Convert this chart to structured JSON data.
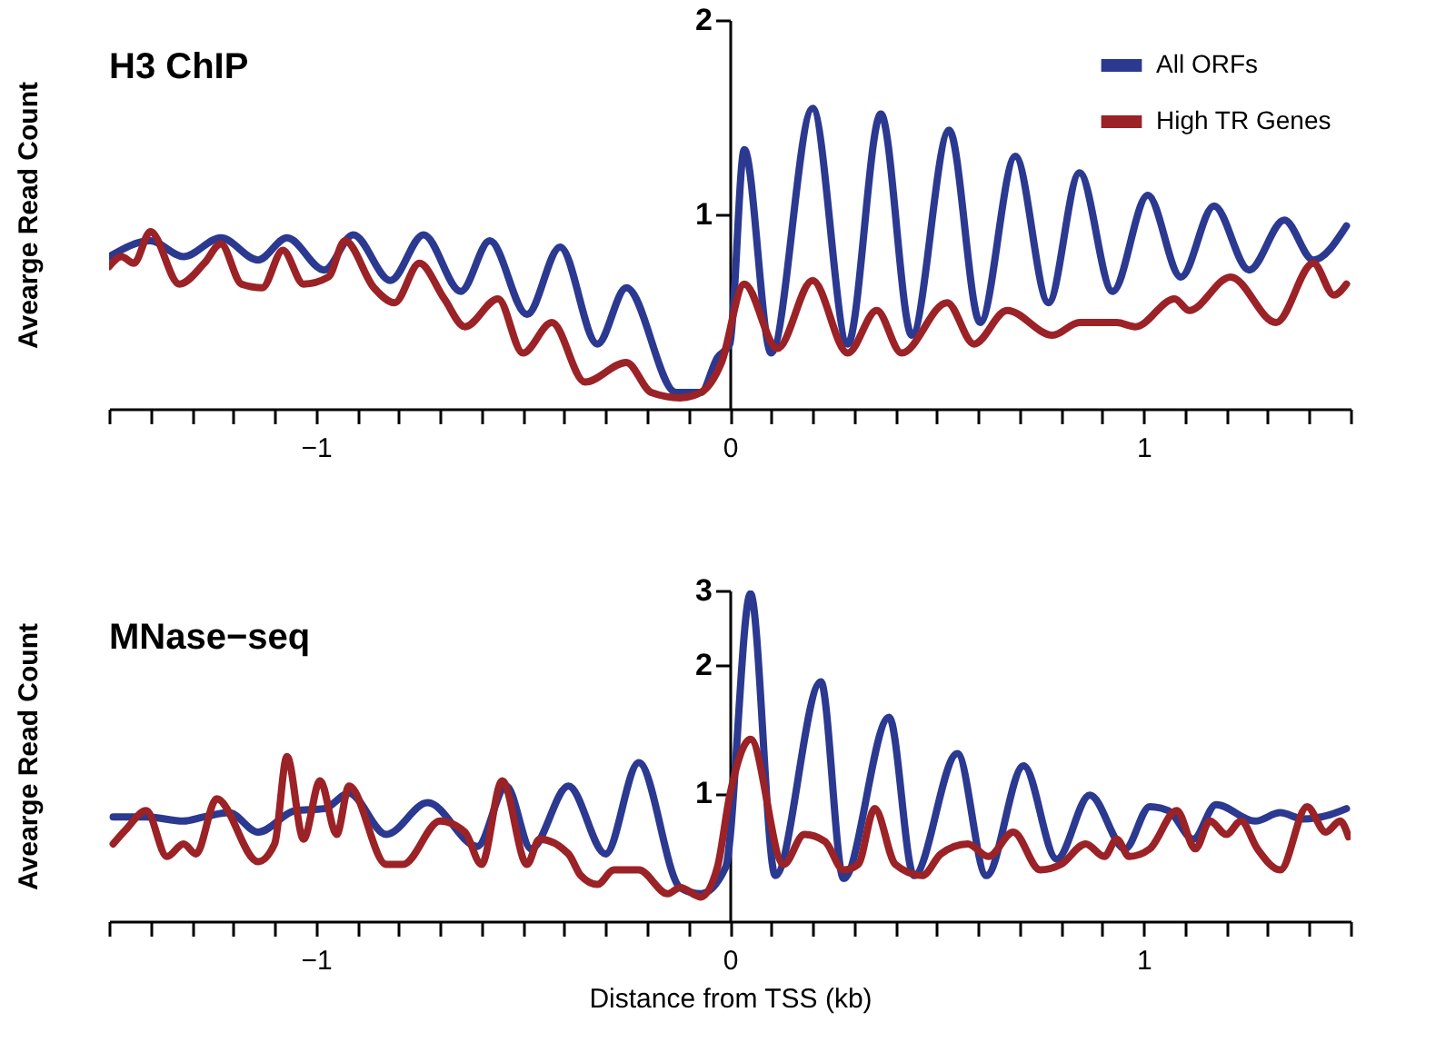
{
  "chart_data": [
    {
      "type": "line",
      "title": "H3 ChIP",
      "ylabel": "Avearge Read Count",
      "log": true,
      "legend": "top right",
      "grid": false,
      "line_style": "solid",
      "marker": "none",
      "xlim": [
        -1.5,
        1.5
      ],
      "ylim": [
        0.5,
        2
      ],
      "yticks": [
        1,
        2
      ],
      "xticks": [
        {
          "value": -1.5,
          "label": null
        },
        {
          "value": -1.4,
          "label": null
        },
        {
          "value": -1.3,
          "label": null
        },
        {
          "value": -1.2,
          "label": null
        },
        {
          "value": -1.1,
          "label": null
        },
        {
          "value": -1,
          "label": "−1"
        },
        {
          "value": -0.9,
          "label": null
        },
        {
          "value": -0.8,
          "label": null
        },
        {
          "value": -0.7,
          "label": null
        },
        {
          "value": -0.6,
          "label": null
        },
        {
          "value": -0.5,
          "label": null
        },
        {
          "value": -0.4,
          "label": null
        },
        {
          "value": -0.3,
          "label": null
        },
        {
          "value": -0.2,
          "label": null
        },
        {
          "value": -0.1,
          "label": null
        },
        0,
        {
          "value": 0.1,
          "label": null
        },
        {
          "value": 0.2,
          "label": null
        },
        {
          "value": 0.3,
          "label": null
        },
        {
          "value": 0.4,
          "label": null
        },
        {
          "value": 0.5,
          "label": null
        },
        {
          "value": 0.6,
          "label": null
        },
        {
          "value": 0.7,
          "label": null
        },
        {
          "value": 0.8,
          "label": null
        },
        {
          "value": 0.9,
          "label": null
        },
        1,
        {
          "value": 1.1,
          "label": null
        },
        {
          "value": 1.2,
          "label": null
        },
        {
          "value": 1.3,
          "label": null
        },
        {
          "value": 1.4,
          "label": null
        },
        {
          "value": 1.5,
          "label": null
        }
      ],
      "series": [
        {
          "name": "All ORFs",
          "color": "#2b3990",
          "x": [
            -1.5,
            -1.4,
            -1.32,
            -1.23,
            -1.14,
            -1.07,
            -0.98,
            -0.91,
            -0.82,
            -0.74,
            -0.65,
            -0.58,
            -0.49,
            -0.41,
            -0.32,
            -0.25,
            -0.13,
            -0.07,
            -0.03,
            0.0,
            0.035,
            0.1,
            0.2,
            0.285,
            0.365,
            0.44,
            0.53,
            0.605,
            0.69,
            0.77,
            0.845,
            0.925,
            1.01,
            1.09,
            1.17,
            1.255,
            1.34,
            1.41,
            1.49
          ],
          "values": [
            0.86,
            0.91,
            0.86,
            0.92,
            0.85,
            0.92,
            0.82,
            0.93,
            0.79,
            0.93,
            0.76,
            0.91,
            0.7,
            0.89,
            0.63,
            0.77,
            0.53,
            0.53,
            0.6,
            0.63,
            1.26,
            0.61,
            1.46,
            0.63,
            1.43,
            0.65,
            1.35,
            0.68,
            1.23,
            0.73,
            1.16,
            0.76,
            1.07,
            0.8,
            1.03,
            0.82,
            0.98,
            0.85,
            0.96
          ]
        },
        {
          "name": "High TR Genes",
          "color": "#9b2226",
          "x": [
            -1.5,
            -1.47,
            -1.44,
            -1.4,
            -1.33,
            -1.27,
            -1.23,
            -1.18,
            -1.13,
            -1.08,
            -1.03,
            -0.97,
            -0.93,
            -0.86,
            -0.81,
            -0.75,
            -0.69,
            -0.64,
            -0.56,
            -0.5,
            -0.43,
            -0.35,
            -0.25,
            -0.19,
            -0.12,
            -0.07,
            -0.02,
            0.035,
            0.115,
            0.2,
            0.285,
            0.355,
            0.415,
            0.525,
            0.59,
            0.67,
            0.78,
            0.845,
            0.935,
            0.98,
            1.075,
            1.11,
            1.21,
            1.32,
            1.41,
            1.46,
            1.49
          ],
          "values": [
            0.83,
            0.86,
            0.84,
            0.94,
            0.78,
            0.84,
            0.9,
            0.78,
            0.77,
            0.88,
            0.78,
            0.8,
            0.91,
            0.77,
            0.73,
            0.84,
            0.74,
            0.67,
            0.74,
            0.61,
            0.68,
            0.55,
            0.59,
            0.53,
            0.52,
            0.53,
            0.59,
            0.78,
            0.62,
            0.79,
            0.61,
            0.71,
            0.61,
            0.73,
            0.63,
            0.71,
            0.65,
            0.68,
            0.68,
            0.67,
            0.74,
            0.71,
            0.8,
            0.68,
            0.84,
            0.75,
            0.78
          ]
        }
      ]
    },
    {
      "type": "line",
      "title": "MNase−seq",
      "ylabel": "Avearge Read Count",
      "xlabel": "Distance from TSS (kb)",
      "log": true,
      "legend": "top right",
      "grid": false,
      "line_style": "solid",
      "marker": "none",
      "xlim": [
        -1.5,
        1.5
      ],
      "ylim": [
        0.5,
        3
      ],
      "yticks": [
        1,
        2,
        3
      ],
      "xticks": [
        {
          "value": -1.5,
          "label": null
        },
        {
          "value": -1.4,
          "label": null
        },
        {
          "value": -1.3,
          "label": null
        },
        {
          "value": -1.2,
          "label": null
        },
        {
          "value": -1.1,
          "label": null
        },
        {
          "value": -1,
          "label": "−1"
        },
        {
          "value": -0.9,
          "label": null
        },
        {
          "value": -0.8,
          "label": null
        },
        {
          "value": -0.7,
          "label": null
        },
        {
          "value": -0.6,
          "label": null
        },
        {
          "value": -0.5,
          "label": null
        },
        {
          "value": -0.4,
          "label": null
        },
        {
          "value": -0.3,
          "label": null
        },
        {
          "value": -0.2,
          "label": null
        },
        {
          "value": -0.1,
          "label": null
        },
        0,
        {
          "value": 0.1,
          "label": null
        },
        {
          "value": 0.2,
          "label": null
        },
        {
          "value": 0.3,
          "label": null
        },
        {
          "value": 0.4,
          "label": null
        },
        {
          "value": 0.5,
          "label": null
        },
        {
          "value": 0.6,
          "label": null
        },
        {
          "value": 0.7,
          "label": null
        },
        {
          "value": 0.8,
          "label": null
        },
        {
          "value": 0.9,
          "label": null
        },
        1,
        {
          "value": 1.1,
          "label": null
        },
        {
          "value": 1.2,
          "label": null
        },
        {
          "value": 1.3,
          "label": null
        },
        {
          "value": 1.4,
          "label": null
        },
        {
          "value": 1.5,
          "label": null
        }
      ],
      "series": [
        {
          "name": "All ORFs",
          "color": "#2b3990",
          "x": [
            -1.49,
            -1.41,
            -1.32,
            -1.27,
            -1.21,
            -1.14,
            -1.05,
            -0.98,
            -0.92,
            -0.83,
            -0.73,
            -0.61,
            -0.54,
            -0.48,
            -0.39,
            -0.3,
            -0.22,
            -0.12,
            -0.07,
            -0.01,
            0.05,
            0.11,
            0.22,
            0.275,
            0.385,
            0.445,
            0.55,
            0.62,
            0.71,
            0.79,
            0.87,
            0.955,
            1.015,
            1.06,
            1.12,
            1.175,
            1.27,
            1.33,
            1.385,
            1.45,
            1.49
          ],
          "values": [
            0.88,
            0.88,
            0.86,
            0.88,
            0.9,
            0.81,
            0.91,
            0.92,
            1.0,
            0.8,
            0.95,
            0.75,
            1.04,
            0.74,
            1.04,
            0.72,
            1.18,
            0.6,
            0.58,
            0.67,
            2.95,
            0.64,
            1.83,
            0.63,
            1.51,
            0.64,
            1.24,
            0.64,
            1.16,
            0.7,
            0.99,
            0.74,
            0.93,
            0.91,
            0.78,
            0.94,
            0.86,
            0.9,
            0.87,
            0.89,
            0.92
          ]
        },
        {
          "name": "High TR Genes",
          "color": "#9b2226",
          "x": [
            -1.49,
            -1.46,
            -1.41,
            -1.36,
            -1.32,
            -1.29,
            -1.24,
            -1.14,
            -1.1,
            -1.07,
            -1.03,
            -0.99,
            -0.95,
            -0.92,
            -0.83,
            -0.79,
            -0.7,
            -0.64,
            -0.6,
            -0.55,
            -0.49,
            -0.46,
            -0.39,
            -0.36,
            -0.32,
            -0.28,
            -0.22,
            -0.15,
            -0.12,
            -0.07,
            -0.03,
            0.0,
            0.05,
            0.13,
            0.18,
            0.23,
            0.275,
            0.31,
            0.35,
            0.4,
            0.465,
            0.51,
            0.575,
            0.625,
            0.685,
            0.75,
            0.8,
            0.86,
            0.905,
            0.935,
            0.965,
            1.015,
            1.08,
            1.125,
            1.16,
            1.2,
            1.235,
            1.275,
            1.33,
            1.395,
            1.44,
            1.475,
            1.495
          ],
          "values": [
            0.76,
            0.82,
            0.91,
            0.71,
            0.76,
            0.72,
            0.97,
            0.69,
            0.76,
            1.22,
            0.78,
            1.07,
            0.8,
            1.04,
            0.68,
            0.68,
            0.86,
            0.81,
            0.68,
            1.07,
            0.68,
            0.78,
            0.72,
            0.64,
            0.61,
            0.66,
            0.66,
            0.58,
            0.6,
            0.57,
            0.67,
            0.99,
            1.34,
            0.68,
            0.8,
            0.77,
            0.66,
            0.68,
            0.92,
            0.68,
            0.64,
            0.72,
            0.76,
            0.71,
            0.81,
            0.66,
            0.68,
            0.76,
            0.71,
            0.78,
            0.71,
            0.74,
            0.91,
            0.74,
            0.86,
            0.8,
            0.86,
            0.74,
            0.66,
            0.93,
            0.81,
            0.86,
            0.79
          ]
        }
      ]
    }
  ]
}
